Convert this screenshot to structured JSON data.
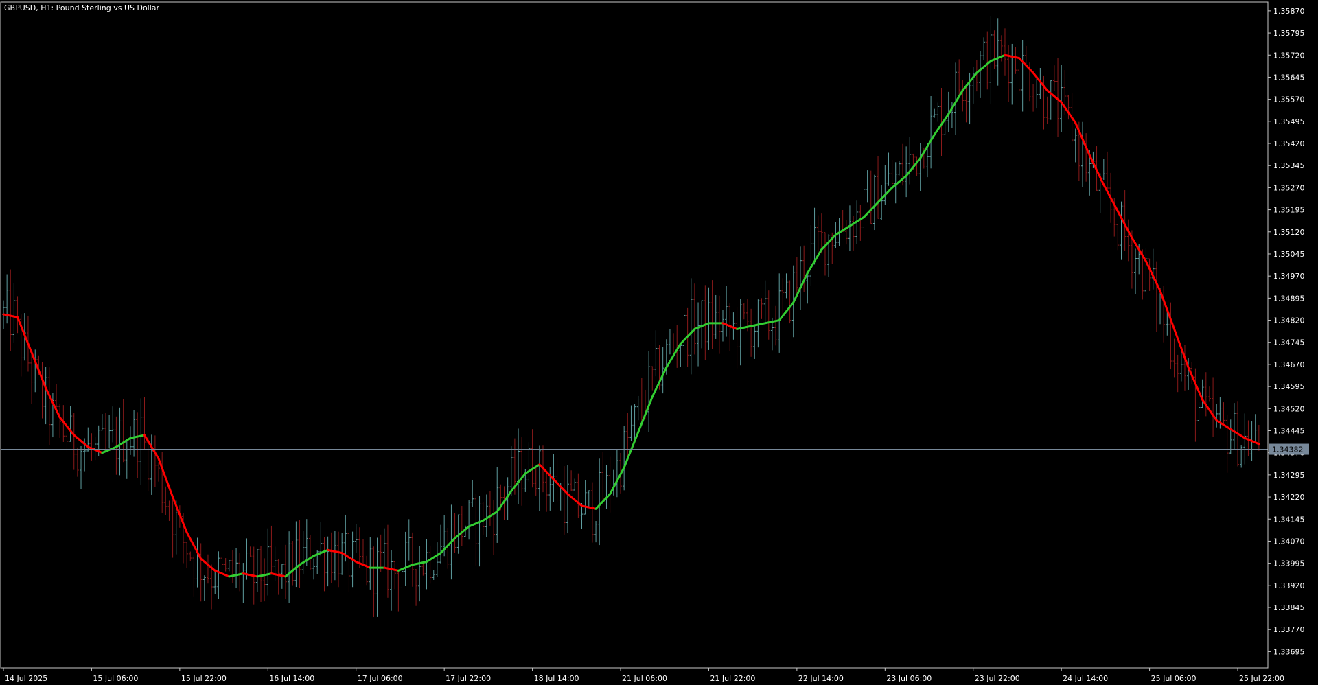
{
  "window": {
    "title": "GBPUSD, H1:  Pound Sterling vs US Dollar"
  },
  "colors": {
    "background": "#000000",
    "axis": "#c8c8c8",
    "text": "#ffffff",
    "bull_bar": "#5f9ea0",
    "bear_bar": "#8b1a1a",
    "ma_up": "#32cd32",
    "ma_down": "#ff0000",
    "bid_line": "#778899",
    "price_tag_bg": "#778899"
  },
  "chart_data": {
    "type": "line",
    "title": "GBPUSD, H1:  Pound Sterling vs US Dollar",
    "symbol": "GBPUSD",
    "timeframe": "H1",
    "ylim": [
      1.3364,
      1.359
    ],
    "y_ticks": [
      "1.35870",
      "1.35795",
      "1.35720",
      "1.35645",
      "1.35570",
      "1.35495",
      "1.35420",
      "1.35345",
      "1.35270",
      "1.35195",
      "1.35120",
      "1.35045",
      "1.34970",
      "1.34895",
      "1.34820",
      "1.34745",
      "1.34670",
      "1.34595",
      "1.34520",
      "1.34445",
      "1.34370",
      "1.34295",
      "1.34220",
      "1.34145",
      "1.34070",
      "1.33995",
      "1.33920",
      "1.33845",
      "1.33770",
      "1.33695"
    ],
    "x_ticks": [
      "14 Jul 2025",
      "15 Jul 06:00",
      "15 Jul 22:00",
      "16 Jul 14:00",
      "17 Jul 06:00",
      "17 Jul 22:00",
      "18 Jul 14:00",
      "21 Jul 06:00",
      "21 Jul 22:00",
      "22 Jul 14:00",
      "23 Jul 06:00",
      "23 Jul 22:00",
      "24 Jul 14:00",
      "25 Jul 06:00",
      "25 Jul 22:00"
    ],
    "current_price": "1.34382",
    "moving_average": {
      "name": "",
      "points": [
        [
          0,
          1.3484
        ],
        [
          4,
          1.3483
        ],
        [
          8,
          1.3471
        ],
        [
          12,
          1.3459
        ],
        [
          16,
          1.3449
        ],
        [
          20,
          1.3443
        ],
        [
          24,
          1.3439
        ],
        [
          28,
          1.3437
        ],
        [
          32,
          1.3439
        ],
        [
          36,
          1.3442
        ],
        [
          40,
          1.3443
        ],
        [
          44,
          1.3435
        ],
        [
          48,
          1.3422
        ],
        [
          52,
          1.341
        ],
        [
          56,
          1.3401
        ],
        [
          60,
          1.3397
        ],
        [
          64,
          1.3395
        ],
        [
          68,
          1.3396
        ],
        [
          72,
          1.3395
        ],
        [
          76,
          1.3396
        ],
        [
          80,
          1.3395
        ],
        [
          84,
          1.3399
        ],
        [
          88,
          1.3402
        ],
        [
          92,
          1.3404
        ],
        [
          96,
          1.3403
        ],
        [
          100,
          1.34
        ],
        [
          104,
          1.3398
        ],
        [
          108,
          1.3398
        ],
        [
          112,
          1.3397
        ],
        [
          116,
          1.3399
        ],
        [
          120,
          1.34
        ],
        [
          124,
          1.3403
        ],
        [
          128,
          1.3408
        ],
        [
          132,
          1.3412
        ],
        [
          136,
          1.3414
        ],
        [
          140,
          1.3417
        ],
        [
          144,
          1.3424
        ],
        [
          148,
          1.343
        ],
        [
          152,
          1.3433
        ],
        [
          156,
          1.3428
        ],
        [
          160,
          1.3423
        ],
        [
          164,
          1.3419
        ],
        [
          168,
          1.3418
        ],
        [
          172,
          1.3423
        ],
        [
          176,
          1.3432
        ],
        [
          180,
          1.3444
        ],
        [
          184,
          1.3456
        ],
        [
          188,
          1.3466
        ],
        [
          192,
          1.3474
        ],
        [
          196,
          1.3479
        ],
        [
          200,
          1.3481
        ],
        [
          204,
          1.3481
        ],
        [
          208,
          1.3479
        ],
        [
          212,
          1.348
        ],
        [
          216,
          1.3481
        ],
        [
          220,
          1.3482
        ],
        [
          224,
          1.3488
        ],
        [
          228,
          1.3498
        ],
        [
          232,
          1.3506
        ],
        [
          236,
          1.3511
        ],
        [
          240,
          1.3514
        ],
        [
          244,
          1.3517
        ],
        [
          248,
          1.3522
        ],
        [
          252,
          1.3527
        ],
        [
          256,
          1.3531
        ],
        [
          260,
          1.3537
        ],
        [
          264,
          1.3545
        ],
        [
          268,
          1.3552
        ],
        [
          272,
          1.356
        ],
        [
          276,
          1.3566
        ],
        [
          280,
          1.357
        ],
        [
          284,
          1.3572
        ],
        [
          288,
          1.3571
        ],
        [
          292,
          1.3566
        ],
        [
          296,
          1.356
        ],
        [
          300,
          1.3556
        ],
        [
          304,
          1.3549
        ],
        [
          308,
          1.3538
        ],
        [
          312,
          1.3528
        ],
        [
          316,
          1.3519
        ],
        [
          320,
          1.351
        ],
        [
          324,
          1.3502
        ],
        [
          328,
          1.3492
        ],
        [
          332,
          1.3479
        ],
        [
          336,
          1.3466
        ],
        [
          340,
          1.3455
        ],
        [
          344,
          1.3448
        ],
        [
          348,
          1.3445
        ],
        [
          352,
          1.3442
        ],
        [
          356,
          1.344
        ]
      ]
    },
    "bars_note": "hourly OHLC bars, alternating bull/bear, derived from the moving-average path"
  }
}
